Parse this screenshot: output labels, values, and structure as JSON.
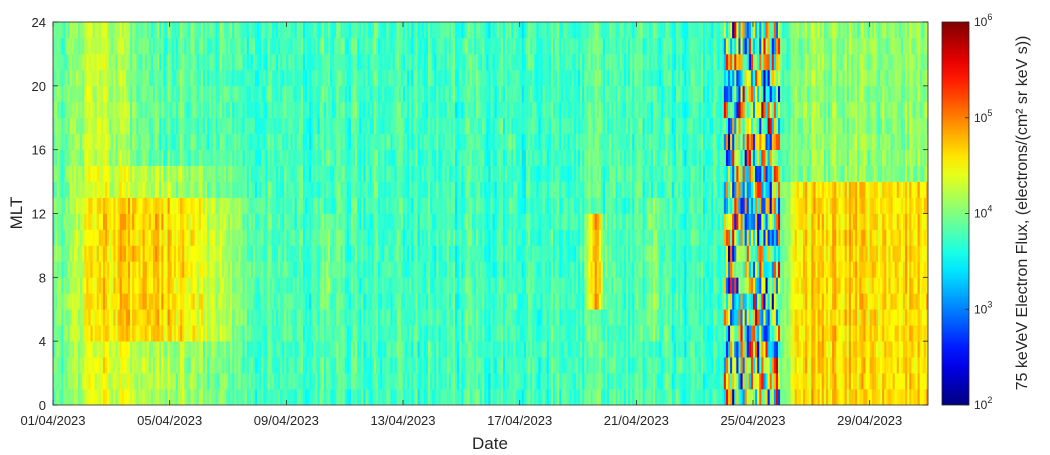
{
  "chart_data": {
    "type": "heatmap",
    "title": "",
    "xlabel": "Date",
    "ylabel": "MLT",
    "x_range": [
      "01/04/2023",
      "01/05/2023"
    ],
    "xticks": [
      "01/04/2023",
      "05/04/2023",
      "09/04/2023",
      "13/04/2023",
      "17/04/2023",
      "21/04/2023",
      "25/04/2023",
      "29/04/2023"
    ],
    "ylim": [
      0,
      24
    ],
    "yticks": [
      "0",
      "4",
      "8",
      "12",
      "16",
      "20",
      "24"
    ],
    "colorbar": {
      "label": "75 keVeV Electron Flux, (electrons/(cm² sr keV s))",
      "scale": "log",
      "range": [
        100,
        1000000
      ],
      "tick_base": "10",
      "tick_exponents": [
        "2",
        "3",
        "4",
        "5",
        "6"
      ],
      "colormap": "jet"
    },
    "grid": false,
    "summary_flux_log10": {
      "background_apr09_apr20": 4.0,
      "enhanced_apr02_apr07_mlt4_13": 4.9,
      "enhanced_apr20_mlt6_12": 5.1,
      "storm_apr24_apr25_range": [
        2.1,
        5.9
      ],
      "enhanced_apr25_apr31_mlt0_13": 4.7
    }
  }
}
